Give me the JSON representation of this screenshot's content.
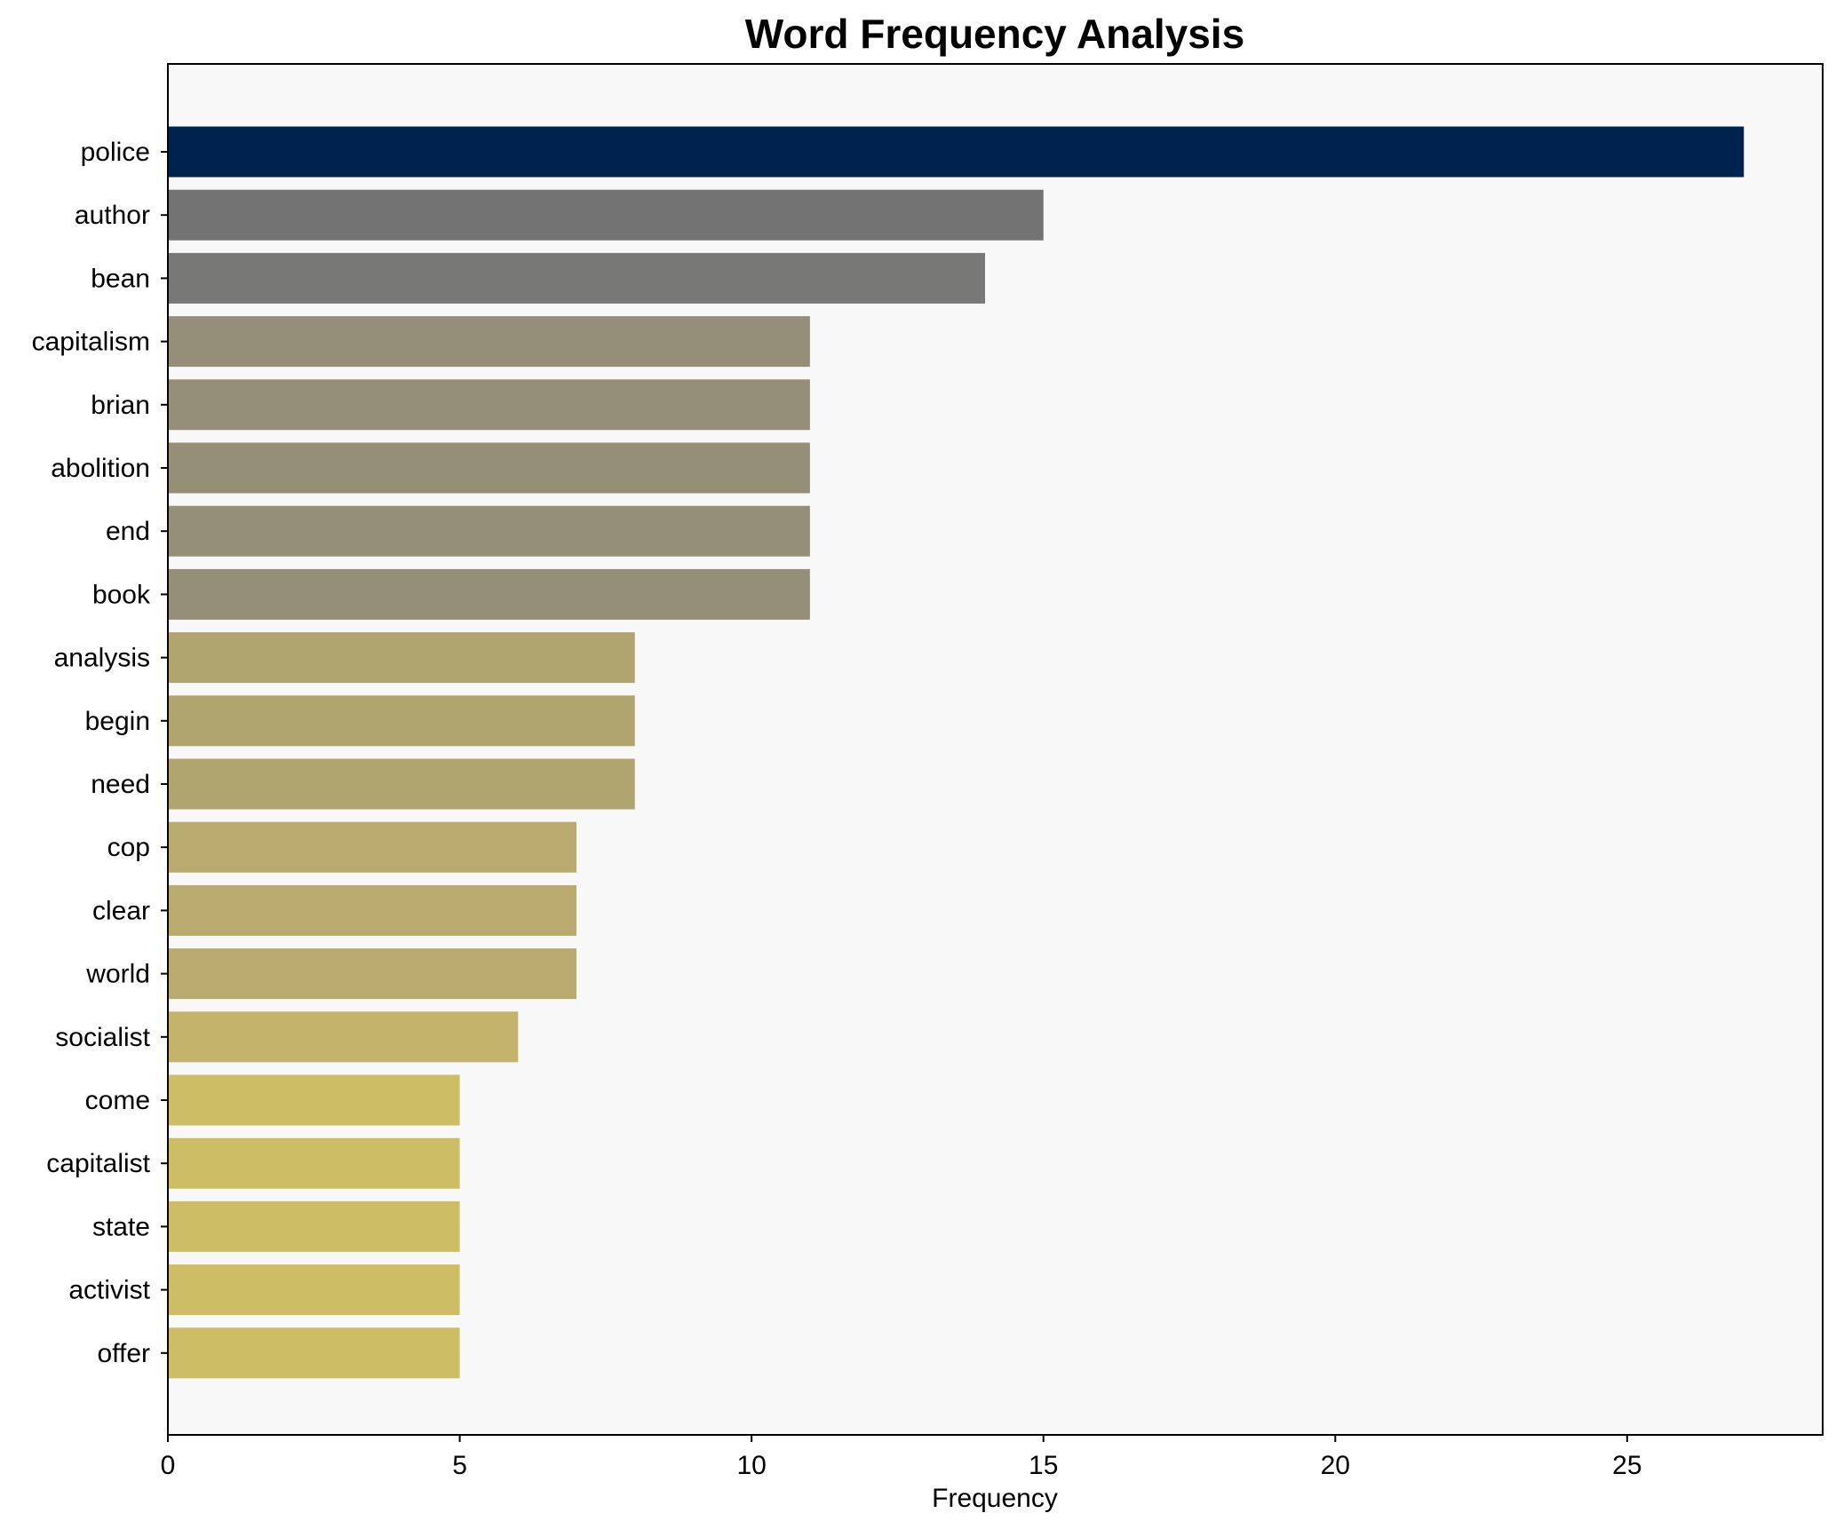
{
  "chart_data": {
    "type": "bar",
    "orientation": "horizontal",
    "title": "Word Frequency Analysis",
    "xlabel": "Frequency",
    "ylabel": "",
    "xlim": [
      0,
      28.35
    ],
    "xticks": [
      0,
      5,
      10,
      15,
      20,
      25
    ],
    "grid": false,
    "legend": "none",
    "background_color": "#f8f8f8",
    "categories": [
      "police",
      "author",
      "bean",
      "capitalism",
      "brian",
      "abolition",
      "end",
      "book",
      "analysis",
      "begin",
      "need",
      "cop",
      "clear",
      "world",
      "socialist",
      "come",
      "capitalist",
      "state",
      "activist",
      "offer"
    ],
    "values": [
      27,
      15,
      14,
      11,
      11,
      11,
      11,
      11,
      8,
      8,
      8,
      7,
      7,
      7,
      6,
      5,
      5,
      5,
      5,
      5
    ],
    "colors": [
      "#00224e",
      "#737373",
      "#787877",
      "#958f78",
      "#958f78",
      "#958f78",
      "#958f78",
      "#958f78",
      "#b0a46f",
      "#b0a46f",
      "#b0a46f",
      "#b9ab6d",
      "#b9ab6d",
      "#b9ab6d",
      "#c4b36a",
      "#cdbd65",
      "#cdbd65",
      "#cdbd65",
      "#cdbd65",
      "#cdbd65"
    ]
  }
}
